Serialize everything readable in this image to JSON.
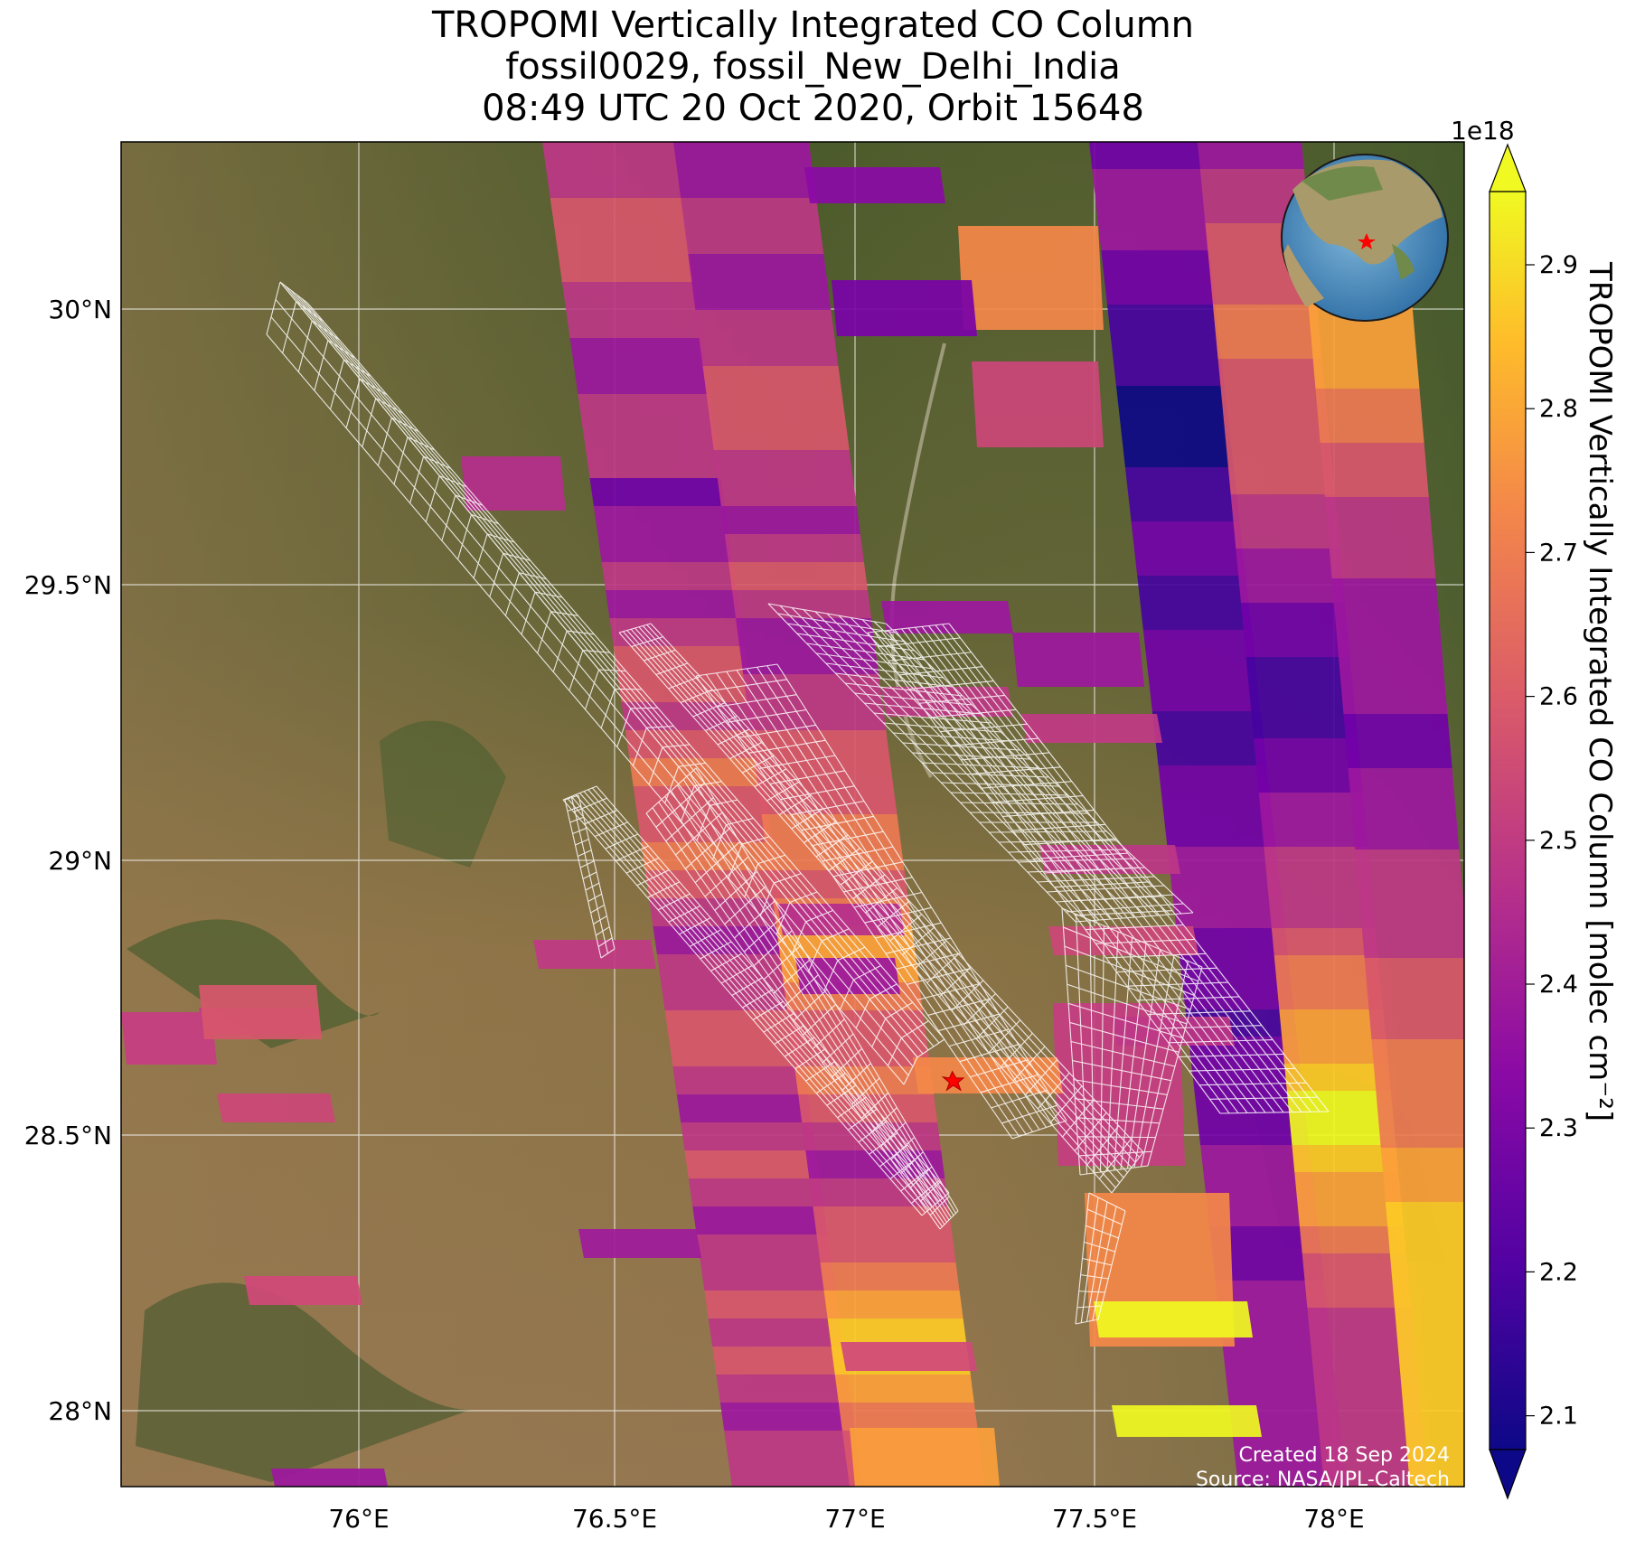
{
  "title": {
    "line1": "TROPOMI Vertically Integrated CO Column",
    "line2": "fossil0029, fossil_New_Delhi_India",
    "line3": "08:49 UTC 20 Oct 2020, Orbit 15648"
  },
  "axes": {
    "lat_ticks": [
      "30°N",
      "29.5°N",
      "29°N",
      "28.5°N",
      "28°N"
    ],
    "lon_ticks": [
      "76°E",
      "76.5°E",
      "77°E",
      "77.5°E",
      "78°E"
    ]
  },
  "colorbar": {
    "label": "TROPOMI Vertically Integrated CO Column [molec cm⁻²]",
    "exponent": "1e18",
    "ticks": [
      "2.9",
      "2.8",
      "2.7",
      "2.6",
      "2.5",
      "2.4",
      "2.3",
      "2.2",
      "2.1"
    ]
  },
  "credits": {
    "created": "Created 18 Sep 2024",
    "source": "Source: NASA/JPL-Caltech"
  },
  "colors": {
    "low": "#0d0887",
    "mid": "#cc4778",
    "high": "#f0f921",
    "star": "#ff0000",
    "grid": "#ffffff"
  },
  "icons": [
    "target-star-icon",
    "globe-inset-icon"
  ]
}
